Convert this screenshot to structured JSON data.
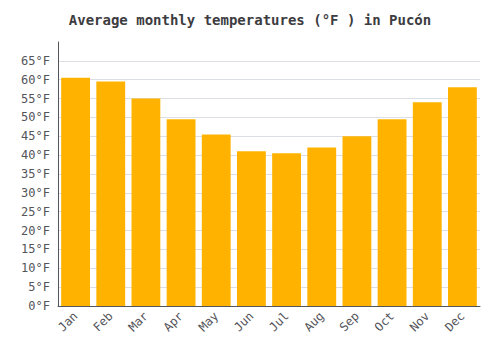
{
  "chart_data": {
    "type": "bar",
    "title": "Average monthly temperatures (°F ) in Pucón",
    "categories": [
      "Jan",
      "Feb",
      "Mar",
      "Apr",
      "May",
      "Jun",
      "Jul",
      "Aug",
      "Sep",
      "Oct",
      "Nov",
      "Dec"
    ],
    "values": [
      60.5,
      59.5,
      55.0,
      49.5,
      45.5,
      41.0,
      40.5,
      42.0,
      45.0,
      49.5,
      54.0,
      58.0
    ],
    "color": "#FFB300",
    "ylim": [
      0,
      70
    ],
    "yticks": [
      {
        "value": 0,
        "label": "0°F"
      },
      {
        "value": 5,
        "label": "5°F"
      },
      {
        "value": 10,
        "label": "10°F"
      },
      {
        "value": 15,
        "label": "15°F"
      },
      {
        "value": 20,
        "label": "20°F"
      },
      {
        "value": 25,
        "label": "25°F"
      },
      {
        "value": 30,
        "label": "30°F"
      },
      {
        "value": 35,
        "label": "35°F"
      },
      {
        "value": 40,
        "label": "40°F"
      },
      {
        "value": 45,
        "label": "45°F"
      },
      {
        "value": 50,
        "label": "50°F"
      },
      {
        "value": 55,
        "label": "55°F"
      },
      {
        "value": 60,
        "label": "60°F"
      },
      {
        "value": 65,
        "label": "65°F"
      }
    ],
    "grid": true
  }
}
